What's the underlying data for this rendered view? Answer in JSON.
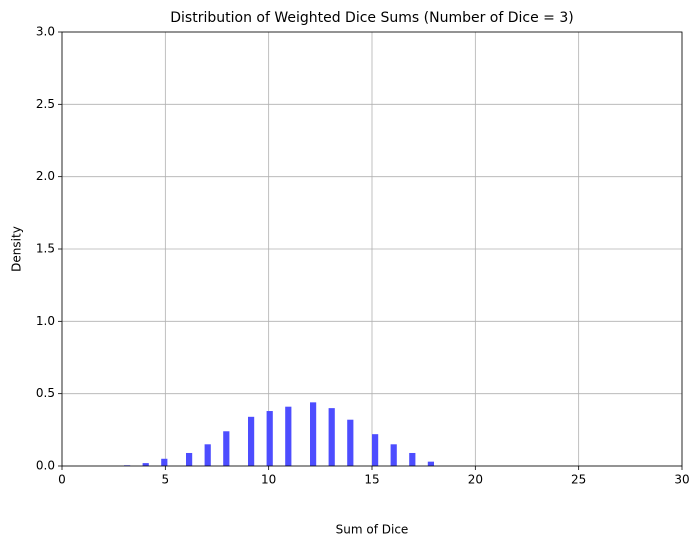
{
  "chart_data": {
    "type": "histogram",
    "title": "Distribution of Weighted Dice Sums (Number of Dice = 3)",
    "x_label": "Sum of Dice",
    "y_label": "Density",
    "bins": [
      3,
      3.3,
      3.6,
      3.9,
      4.2,
      4.5,
      4.8,
      5.1,
      5.4,
      5.7,
      6,
      6.3,
      6.6,
      6.9,
      7.2,
      7.5,
      7.8,
      8.1,
      8.4,
      8.7,
      9,
      9.3,
      9.6,
      9.9,
      10.2,
      10.5,
      10.8,
      11.1,
      11.4,
      11.7,
      12,
      12.3,
      12.6,
      12.9,
      13.2,
      13.5,
      13.8,
      14.1,
      14.4,
      14.7,
      15,
      15.3,
      15.6,
      15.9,
      16.2,
      16.5,
      16.8,
      17.1,
      17.4,
      17.7,
      18
    ],
    "values": [
      0.005,
      0,
      0,
      0.02,
      0,
      0,
      0.05,
      0,
      0,
      0,
      0.09,
      0,
      0,
      0.15,
      0,
      0,
      0.24,
      0,
      0,
      0,
      0.34,
      0,
      0,
      0.38,
      0,
      0,
      0.41,
      0,
      0,
      0,
      0.44,
      0,
      0,
      0.4,
      0,
      0,
      0.32,
      0,
      0,
      0,
      0.22,
      0,
      0,
      0.15,
      0,
      0,
      0.09,
      0,
      0,
      0.03
    ],
    "color": "#4d4dff",
    "xlim": [
      0,
      30
    ],
    "xticks": [
      0,
      5,
      10,
      15,
      20,
      25,
      30
    ],
    "ylim": [
      0,
      3
    ],
    "yticks": [
      {
        "value": 0,
        "label": "0.0"
      },
      0.5,
      {
        "value": 1,
        "label": "1.0"
      },
      1.5,
      {
        "value": 2,
        "label": "2.0"
      },
      2.5,
      {
        "value": 3,
        "label": "3.0"
      }
    ],
    "grid": true
  }
}
